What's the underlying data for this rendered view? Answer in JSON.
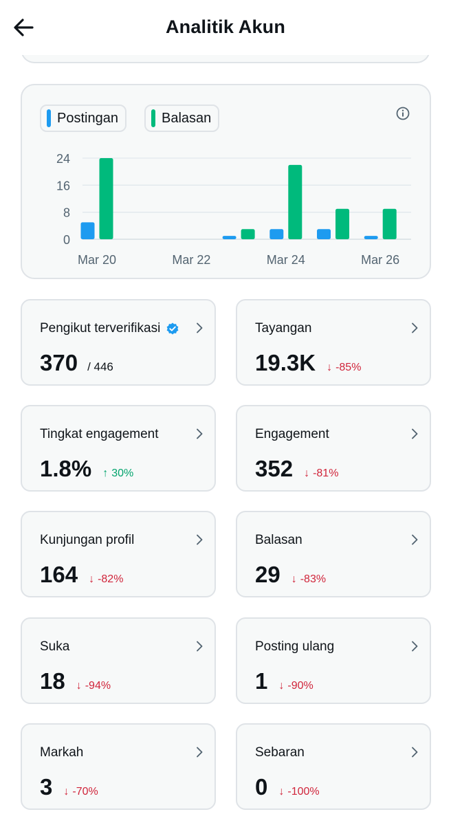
{
  "header": {
    "title": "Analitik Akun"
  },
  "legend": [
    {
      "label": "Postingan",
      "color": "#1d9bf0"
    },
    {
      "label": "Balasan",
      "color": "#00ba7c"
    }
  ],
  "chart_data": {
    "type": "bar",
    "x": [
      "Mar 20",
      "Mar 21",
      "Mar 22",
      "Mar 23",
      "Mar 24",
      "Mar 25",
      "Mar 26"
    ],
    "x_tick_labels": [
      "Mar 20",
      "Mar 22",
      "Mar 24",
      "Mar 26"
    ],
    "y_ticks": [
      "0",
      "8",
      "16",
      "24"
    ],
    "ylim": [
      0,
      24
    ],
    "series": [
      {
        "name": "Postingan",
        "color": "#1d9bf0",
        "values": [
          5,
          0,
          0,
          1,
          3,
          3,
          1
        ]
      },
      {
        "name": "Balasan",
        "color": "#00ba7c",
        "values": [
          24,
          0,
          0,
          3,
          22,
          9,
          9
        ]
      }
    ],
    "grid": true
  },
  "metrics": [
    {
      "label": "Pengikut terverifikasi",
      "value": "370",
      "total": "/ 446",
      "verified": true
    },
    {
      "label": "Tayangan",
      "value": "19.3K",
      "change": "-85%",
      "direction": "down"
    },
    {
      "label": "Tingkat engagement",
      "value": "1.8%",
      "change": "30%",
      "direction": "up"
    },
    {
      "label": "Engagement",
      "value": "352",
      "change": "-81%",
      "direction": "down"
    },
    {
      "label": "Kunjungan profil",
      "value": "164",
      "change": "-82%",
      "direction": "down"
    },
    {
      "label": "Balasan",
      "value": "29",
      "change": "-83%",
      "direction": "down"
    },
    {
      "label": "Suka",
      "value": "18",
      "change": "-94%",
      "direction": "down"
    },
    {
      "label": "Posting ulang",
      "value": "1",
      "change": "-90%",
      "direction": "down"
    },
    {
      "label": "Markah",
      "value": "3",
      "change": "-70%",
      "direction": "down"
    },
    {
      "label": "Sebaran",
      "value": "0",
      "change": "-100%",
      "direction": "down"
    }
  ],
  "icons": {
    "back": "arrow-left-icon",
    "info": "info-icon",
    "chevron": "chevron-right-icon",
    "verified": "verified-badge-icon"
  }
}
